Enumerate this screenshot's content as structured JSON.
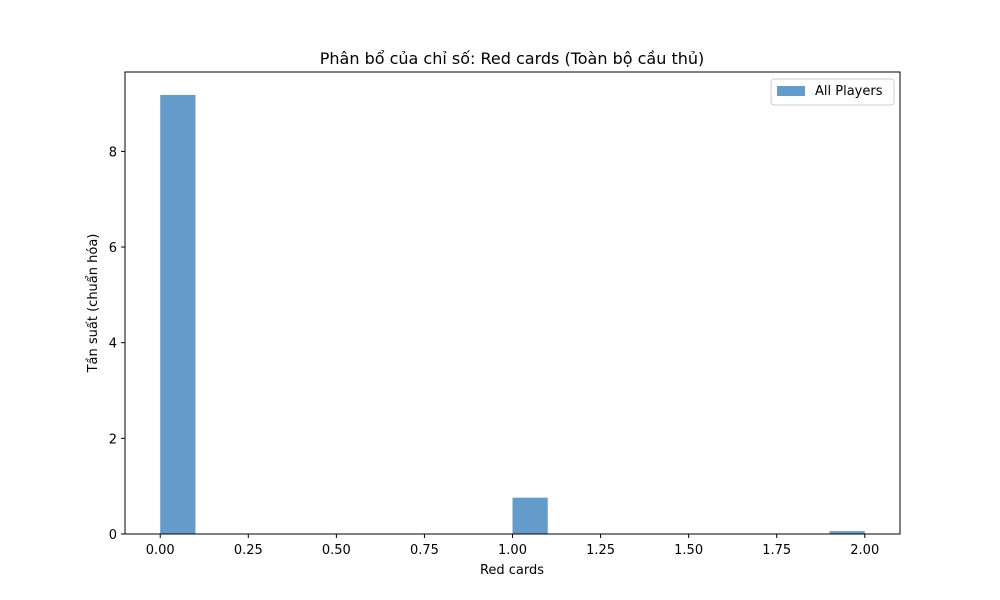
{
  "chart_data": {
    "type": "bar",
    "title": "Phân bổ của chỉ số: Red cards (Toàn bộ cầu thủ)",
    "xlabel": "Red cards",
    "ylabel": "Tần suất (chuẩn hóa)",
    "xlim": [
      -0.1,
      2.1
    ],
    "ylim": [
      0,
      9.66
    ],
    "xticks": [
      0,
      0.25,
      0.5,
      0.75,
      1.0,
      1.25,
      1.5,
      1.75,
      2.0
    ],
    "xtick_labels": [
      "0.00",
      "0.25",
      "0.50",
      "0.75",
      "1.00",
      "1.25",
      "1.50",
      "1.75",
      "2.00"
    ],
    "yticks": [
      0,
      2,
      4,
      6,
      8
    ],
    "ytick_labels": [
      "0",
      "2",
      "4",
      "6",
      "8"
    ],
    "grid": false,
    "legend_position": "top-right",
    "bar_color": "#4c8dc2",
    "series": [
      {
        "name": "All Players",
        "bins": [
          {
            "x0": 0.0,
            "x1": 0.1,
            "value": 9.18
          },
          {
            "x0": 1.0,
            "x1": 1.1,
            "value": 0.76
          },
          {
            "x0": 1.9,
            "x1": 2.0,
            "value": 0.06
          }
        ]
      }
    ]
  }
}
